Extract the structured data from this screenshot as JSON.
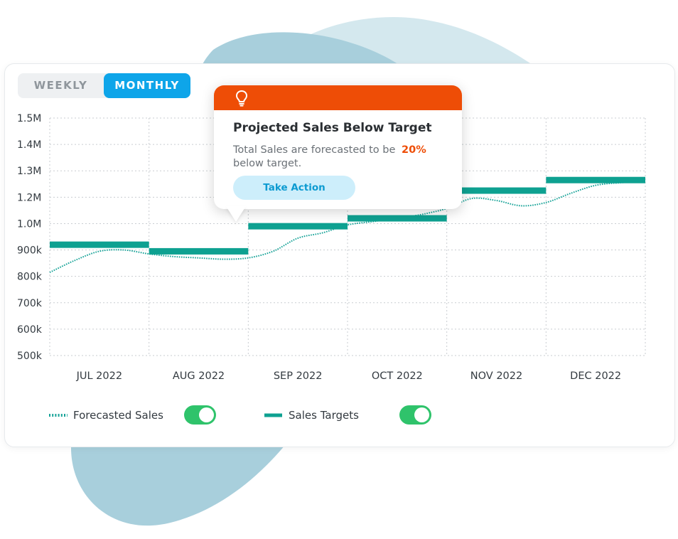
{
  "view_toggle": {
    "weekly_label": "WEEKLY",
    "monthly_label": "MONTHLY",
    "selected": "MONTHLY"
  },
  "colors": {
    "accent": "#0ea5e9",
    "target": "#0ea191",
    "forecast": "#17a398",
    "alert": "#ee4d06",
    "switch_on": "#2fc36b",
    "blob_light": "#d4e8ee",
    "blob_dark": "#a8cfdc",
    "grid": "#c9cdd1",
    "text": "#333a40"
  },
  "tooltip": {
    "icon": "lightbulb-icon",
    "title": "Projected Sales Below Target",
    "body": "Total Sales are forecasted to be",
    "percent": "20%",
    "body_end": "below target.",
    "action_label": "Take Action"
  },
  "legend": {
    "forecast_label": "Forecasted Sales",
    "forecast_on": true,
    "targets_label": "Sales Targets",
    "targets_on": true
  },
  "chart_data": {
    "type": "line",
    "title": "",
    "xlabel": "",
    "ylabel": "",
    "categories": [
      "JUL 2022",
      "AUG 2022",
      "SEP 2022",
      "OCT 2022",
      "NOV 2022",
      "DEC 2022"
    ],
    "y_ticks": [
      500000,
      600000,
      700000,
      800000,
      900000,
      1000000,
      1200000,
      1300000,
      1400000,
      1500000
    ],
    "y_tick_labels": [
      "500k",
      "600k",
      "700k",
      "800k",
      "900k",
      "1.0M",
      "1.2M",
      "1.3M",
      "1.4M",
      "1.5M"
    ],
    "grid": true,
    "legend_position": "bottom-left",
    "series": [
      {
        "name": "Sales Targets",
        "style": "step",
        "values": [
          920000,
          895000,
          990000,
          1040000,
          1225000,
          1265000
        ]
      },
      {
        "name": "Forecasted Sales",
        "style": "dotted",
        "x": [
          0,
          0.25,
          0.5,
          0.75,
          1.0,
          1.25,
          1.5,
          1.75,
          2.0,
          2.25,
          2.5,
          2.75,
          3.0,
          3.25,
          3.5,
          3.75,
          4.0,
          4.25,
          4.5,
          4.75,
          5.0,
          5.25,
          5.5,
          5.75,
          6.0
        ],
        "values": [
          815000,
          860000,
          895000,
          900000,
          885000,
          875000,
          870000,
          865000,
          870000,
          895000,
          945000,
          965000,
          995000,
          1015000,
          1040000,
          1070000,
          1115000,
          1190000,
          1175000,
          1135000,
          1160000,
          1215000,
          1245000,
          1255000,
          1260000
        ]
      }
    ]
  }
}
